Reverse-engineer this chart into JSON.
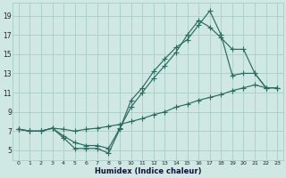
{
  "xlabel": "Humidex (Indice chaleur)",
  "bg_color": "#cfe8e4",
  "grid_color": "#aaccc8",
  "line_color": "#2a6b60",
  "xlim": [
    -0.5,
    23.5
  ],
  "ylim": [
    4.0,
    20.3
  ],
  "xticks": [
    0,
    1,
    2,
    3,
    4,
    5,
    6,
    7,
    8,
    9,
    10,
    11,
    12,
    13,
    14,
    15,
    16,
    17,
    18,
    19,
    20,
    21,
    22,
    23
  ],
  "yticks": [
    5,
    7,
    9,
    11,
    13,
    15,
    17,
    19
  ],
  "line1_x": [
    0,
    1,
    2,
    3,
    4,
    5,
    6,
    7,
    8,
    9,
    10,
    11,
    12,
    13,
    14,
    15,
    16,
    17,
    18,
    19,
    20,
    21,
    22,
    23
  ],
  "line1_y": [
    7.2,
    7.0,
    7.0,
    7.3,
    6.3,
    5.2,
    5.2,
    5.2,
    4.7,
    7.2,
    10.2,
    11.5,
    13.2,
    14.5,
    15.7,
    16.5,
    18.0,
    19.5,
    17.0,
    12.8,
    13.0,
    13.0,
    11.5,
    11.5
  ],
  "line2_x": [
    0,
    1,
    2,
    3,
    4,
    5,
    6,
    7,
    8,
    9,
    10,
    11,
    12,
    13,
    14,
    15,
    16,
    17,
    18,
    19,
    20,
    21,
    22,
    23
  ],
  "line2_y": [
    7.2,
    7.0,
    7.0,
    7.3,
    6.5,
    5.8,
    5.5,
    5.5,
    5.2,
    7.3,
    9.5,
    11.0,
    12.5,
    13.8,
    15.2,
    17.0,
    18.5,
    17.8,
    16.7,
    15.5,
    15.5,
    13.0,
    11.5,
    11.5
  ],
  "line3_x": [
    0,
    1,
    2,
    3,
    4,
    5,
    6,
    7,
    8,
    9,
    10,
    11,
    12,
    13,
    14,
    15,
    16,
    17,
    18,
    19,
    20,
    21,
    22,
    23
  ],
  "line3_y": [
    7.2,
    7.0,
    7.0,
    7.3,
    7.2,
    7.0,
    7.2,
    7.3,
    7.5,
    7.7,
    8.0,
    8.3,
    8.7,
    9.0,
    9.5,
    9.8,
    10.2,
    10.5,
    10.8,
    11.2,
    11.5,
    11.8,
    11.5,
    11.5
  ]
}
